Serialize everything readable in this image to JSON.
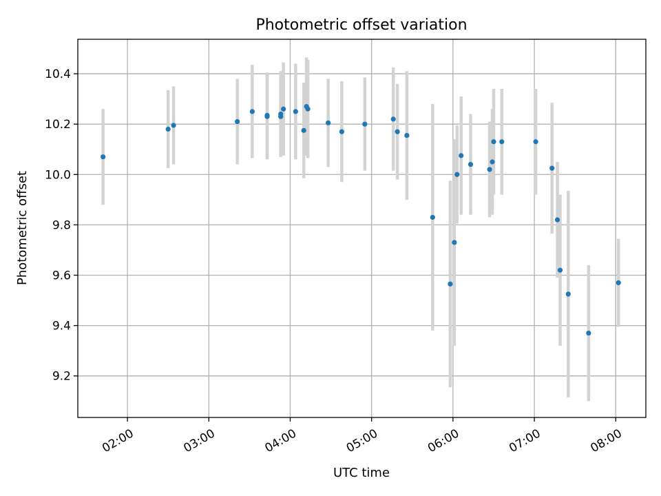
{
  "chart_data": {
    "type": "scatter",
    "title": "Photometric offset variation",
    "xlabel": "UTC time",
    "ylabel": "Photometric offset",
    "grid": true,
    "x_ticks": [
      "02:00",
      "03:00",
      "04:00",
      "05:00",
      "06:00",
      "07:00",
      "08:00"
    ],
    "x_tick_hours": [
      2,
      3,
      4,
      5,
      6,
      7,
      8
    ],
    "y_ticks": [
      9.2,
      9.4,
      9.6,
      9.8,
      10.0,
      10.2,
      10.4
    ],
    "xlim_hours": [
      1.39,
      8.37
    ],
    "ylim": [
      9.035,
      10.537
    ],
    "point_color": "#1f77b4",
    "errorbar_color": "#d3d3d3",
    "points": [
      {
        "time": "01:42",
        "y": 10.07,
        "yerr": 0.19
      },
      {
        "time": "02:30",
        "y": 10.18,
        "yerr": 0.155
      },
      {
        "time": "02:34",
        "y": 10.195,
        "yerr": 0.155
      },
      {
        "time": "03:21",
        "y": 10.21,
        "yerr": 0.17
      },
      {
        "time": "03:32",
        "y": 10.25,
        "yerr": 0.185
      },
      {
        "time": "03:43",
        "y": 10.23,
        "yerr": 0.17
      },
      {
        "time": "03:43",
        "y": 10.235,
        "yerr": 0.17
      },
      {
        "time": "03:53",
        "y": 10.24,
        "yerr": 0.17
      },
      {
        "time": "03:53",
        "y": 10.23,
        "yerr": 0.16
      },
      {
        "time": "03:55",
        "y": 10.26,
        "yerr": 0.185
      },
      {
        "time": "04:04",
        "y": 10.25,
        "yerr": 0.19
      },
      {
        "time": "04:10",
        "y": 10.175,
        "yerr": 0.19
      },
      {
        "time": "04:12",
        "y": 10.27,
        "yerr": 0.195
      },
      {
        "time": "04:13",
        "y": 10.26,
        "yerr": 0.195
      },
      {
        "time": "04:28",
        "y": 10.205,
        "yerr": 0.175
      },
      {
        "time": "04:38",
        "y": 10.17,
        "yerr": 0.2
      },
      {
        "time": "04:55",
        "y": 10.2,
        "yerr": 0.185
      },
      {
        "time": "05:16",
        "y": 10.22,
        "yerr": 0.205
      },
      {
        "time": "05:19",
        "y": 10.17,
        "yerr": 0.19
      },
      {
        "time": "05:26",
        "y": 10.155,
        "yerr": 0.255
      },
      {
        "time": "05:45",
        "y": 9.83,
        "yerr": 0.45
      },
      {
        "time": "05:58",
        "y": 9.565,
        "yerr": 0.41
      },
      {
        "time": "06:01",
        "y": 9.73,
        "yerr": 0.41
      },
      {
        "time": "06:03",
        "y": 10.0,
        "yerr": 0.195
      },
      {
        "time": "06:06",
        "y": 10.075,
        "yerr": 0.235
      },
      {
        "time": "06:13",
        "y": 10.04,
        "yerr": 0.2
      },
      {
        "time": "06:27",
        "y": 10.02,
        "yerr": 0.19
      },
      {
        "time": "06:29",
        "y": 10.05,
        "yerr": 0.21
      },
      {
        "time": "06:30",
        "y": 10.13,
        "yerr": 0.21
      },
      {
        "time": "06:36",
        "y": 10.13,
        "yerr": 0.21
      },
      {
        "time": "07:01",
        "y": 10.13,
        "yerr": 0.21
      },
      {
        "time": "07:13",
        "y": 10.025,
        "yerr": 0.26
      },
      {
        "time": "07:17",
        "y": 9.82,
        "yerr": 0.23
      },
      {
        "time": "07:19",
        "y": 9.62,
        "yerr": 0.3
      },
      {
        "time": "07:25",
        "y": 9.525,
        "yerr": 0.41
      },
      {
        "time": "07:40",
        "y": 9.37,
        "yerr": 0.27
      },
      {
        "time": "08:02",
        "y": 9.57,
        "yerr": 0.175
      }
    ]
  }
}
